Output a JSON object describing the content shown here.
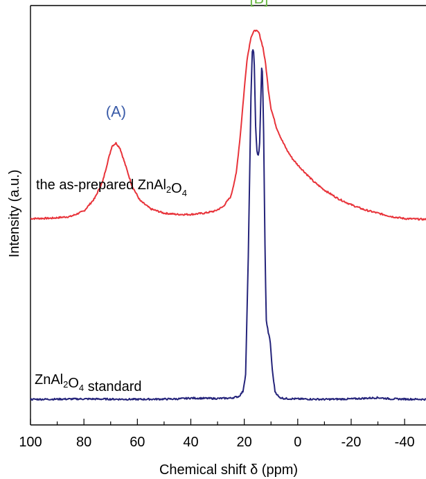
{
  "chart_data": {
    "type": "line",
    "xlabel": "Chemical shift δ (ppm)",
    "ylabel": "Intensity (a.u.)",
    "xlim": [
      100,
      -48
    ],
    "x_ticks": [
      100,
      80,
      60,
      40,
      20,
      0,
      -20,
      -40
    ],
    "x_tick_labels": [
      "100",
      "80",
      "60",
      "40",
      "20",
      "0",
      "-20",
      "-40"
    ],
    "y_ticks_shown": false,
    "grid": false,
    "series": [
      {
        "name_parts": [
          "the as-prepared ZnAl",
          "2",
          "O",
          "4"
        ],
        "color": "#e8333a",
        "baseline": 0.49,
        "points": [
          [
            100,
            0.492
          ],
          [
            92,
            0.493
          ],
          [
            85,
            0.497
          ],
          [
            80,
            0.51
          ],
          [
            76,
            0.54
          ],
          [
            73,
            0.58
          ],
          [
            71,
            0.63
          ],
          [
            69.5,
            0.665
          ],
          [
            68,
            0.672
          ],
          [
            66.5,
            0.66
          ],
          [
            64.5,
            0.62
          ],
          [
            62,
            0.57
          ],
          [
            59,
            0.535
          ],
          [
            55,
            0.515
          ],
          [
            50,
            0.505
          ],
          [
            45,
            0.502
          ],
          [
            40,
            0.502
          ],
          [
            35,
            0.505
          ],
          [
            31,
            0.51
          ],
          [
            28,
            0.52
          ],
          [
            25,
            0.545
          ],
          [
            23,
            0.6
          ],
          [
            21.5,
            0.69
          ],
          [
            20,
            0.8
          ],
          [
            19,
            0.87
          ],
          [
            17.5,
            0.925
          ],
          [
            16,
            0.942
          ],
          [
            14.5,
            0.935
          ],
          [
            13,
            0.9
          ],
          [
            12,
            0.86
          ],
          [
            11,
            0.8
          ],
          [
            10,
            0.755
          ],
          [
            8,
            0.71
          ],
          [
            6,
            0.68
          ],
          [
            4,
            0.655
          ],
          [
            2,
            0.635
          ],
          [
            0,
            0.62
          ],
          [
            -3,
            0.6
          ],
          [
            -6,
            0.58
          ],
          [
            -10,
            0.56
          ],
          [
            -15,
            0.54
          ],
          [
            -20,
            0.525
          ],
          [
            -25,
            0.513
          ],
          [
            -30,
            0.505
          ],
          [
            -35,
            0.497
          ],
          [
            -40,
            0.492
          ],
          [
            -48,
            0.49
          ]
        ]
      },
      {
        "name_parts": [
          "ZnAl",
          "2",
          "O",
          "4",
          " standard"
        ],
        "color": "#24237a",
        "baseline": 0.06,
        "points": [
          [
            100,
            0.061
          ],
          [
            80,
            0.062
          ],
          [
            60,
            0.061
          ],
          [
            45,
            0.062
          ],
          [
            40,
            0.064
          ],
          [
            30,
            0.063
          ],
          [
            25,
            0.064
          ],
          [
            22,
            0.068
          ],
          [
            20.5,
            0.08
          ],
          [
            19.5,
            0.12
          ],
          [
            18.5,
            0.4
          ],
          [
            17.5,
            0.78
          ],
          [
            17,
            0.89
          ],
          [
            16.6,
            0.9
          ],
          [
            16.2,
            0.85
          ],
          [
            15.8,
            0.72
          ],
          [
            15.3,
            0.655
          ],
          [
            14.8,
            0.64
          ],
          [
            14.3,
            0.66
          ],
          [
            13.8,
            0.78
          ],
          [
            13.5,
            0.85
          ],
          [
            13.2,
            0.84
          ],
          [
            12.8,
            0.72
          ],
          [
            12.3,
            0.45
          ],
          [
            11.8,
            0.25
          ],
          [
            11,
            0.22
          ],
          [
            10.3,
            0.2
          ],
          [
            9.5,
            0.13
          ],
          [
            8.5,
            0.08
          ],
          [
            7,
            0.066
          ],
          [
            5,
            0.063
          ],
          [
            0,
            0.062
          ],
          [
            -10,
            0.061
          ],
          [
            -20,
            0.062
          ],
          [
            -30,
            0.065
          ],
          [
            -35,
            0.062
          ],
          [
            -48,
            0.061
          ]
        ]
      }
    ],
    "annotations": [
      {
        "text": "(A)",
        "x": 68,
        "y": 0.735,
        "color": "#3a5ba8"
      },
      {
        "text": "[B]",
        "x": 14.5,
        "y": 1.005,
        "color": "#6ab744"
      }
    ]
  }
}
